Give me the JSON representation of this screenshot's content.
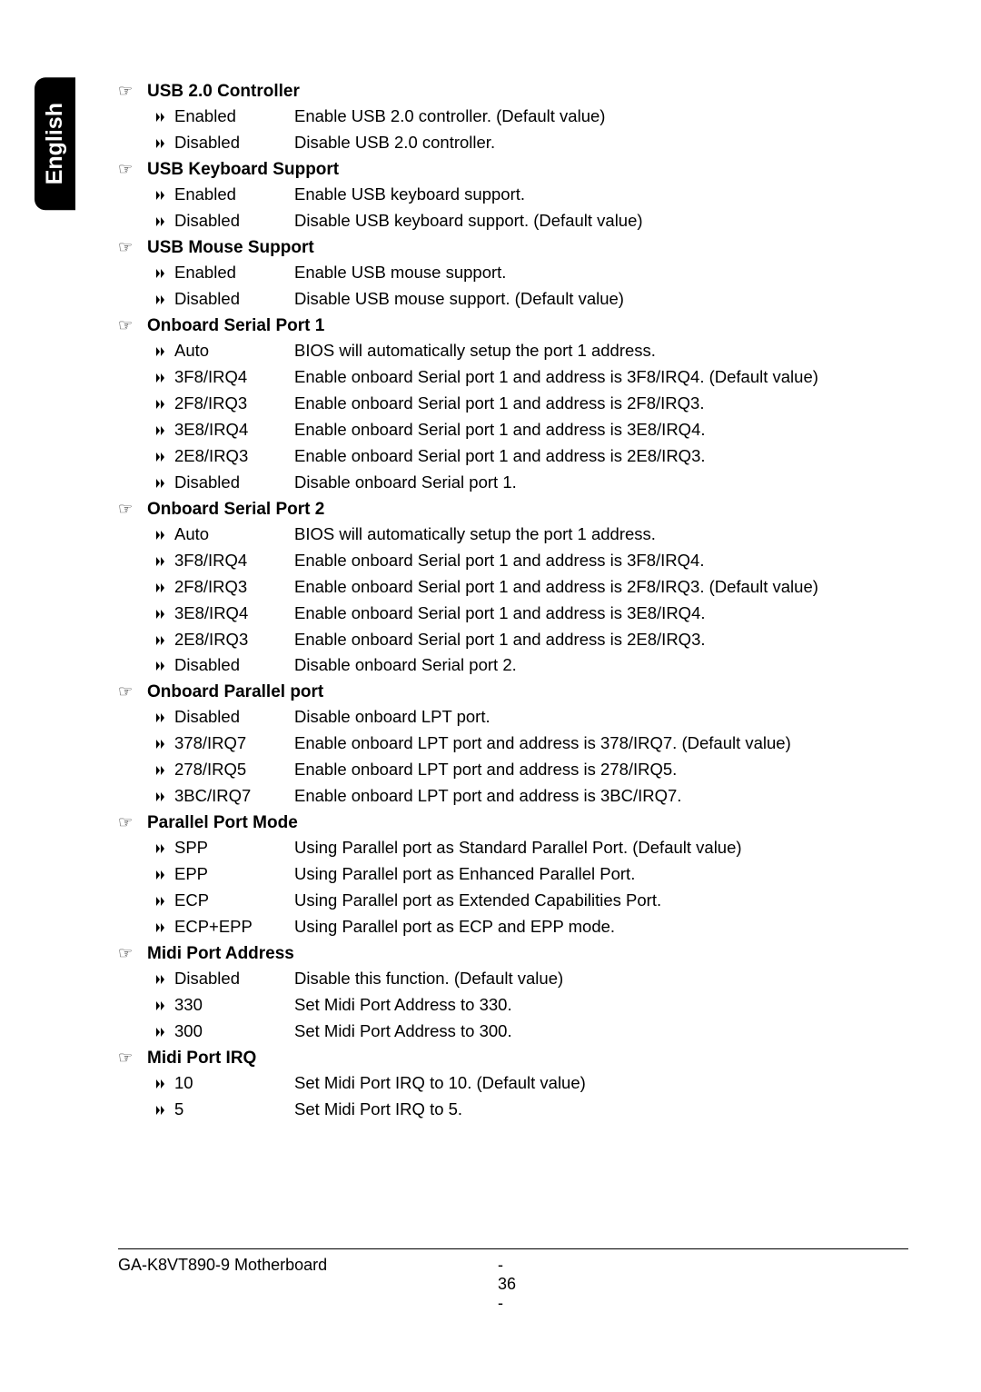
{
  "language_tab": "English",
  "sections": [
    {
      "title": "USB 2.0 Controller",
      "options": [
        {
          "label": "Enabled",
          "desc": "Enable USB 2.0 controller. (Default value)"
        },
        {
          "label": "Disabled",
          "desc": "Disable USB 2.0 controller."
        }
      ]
    },
    {
      "title": "USB Keyboard Support",
      "options": [
        {
          "label": "Enabled",
          "desc": "Enable USB keyboard support."
        },
        {
          "label": "Disabled",
          "desc": "Disable USB keyboard support. (Default value)"
        }
      ]
    },
    {
      "title": "USB Mouse Support",
      "options": [
        {
          "label": "Enabled",
          "desc": "Enable USB mouse support."
        },
        {
          "label": "Disabled",
          "desc": "Disable USB mouse support. (Default value)"
        }
      ]
    },
    {
      "title": "Onboard Serial Port 1",
      "options": [
        {
          "label": "Auto",
          "desc": "BIOS will automatically setup the port 1 address."
        },
        {
          "label": "3F8/IRQ4",
          "desc": "Enable onboard Serial port 1 and address is 3F8/IRQ4. (Default value)"
        },
        {
          "label": "2F8/IRQ3",
          "desc": "Enable onboard Serial port 1 and address is 2F8/IRQ3."
        },
        {
          "label": "3E8/IRQ4",
          "desc": "Enable onboard Serial port 1 and address is 3E8/IRQ4."
        },
        {
          "label": "2E8/IRQ3",
          "desc": "Enable onboard Serial port 1 and address is 2E8/IRQ3."
        },
        {
          "label": "Disabled",
          "desc": "Disable onboard Serial port 1."
        }
      ]
    },
    {
      "title": "Onboard Serial Port 2",
      "options": [
        {
          "label": "Auto",
          "desc": "BIOS will automatically setup the port 1 address."
        },
        {
          "label": "3F8/IRQ4",
          "desc": "Enable onboard Serial port 1 and address is 3F8/IRQ4."
        },
        {
          "label": "2F8/IRQ3",
          "desc": "Enable onboard Serial port 1 and address is 2F8/IRQ3. (Default value)"
        },
        {
          "label": "3E8/IRQ4",
          "desc": "Enable onboard Serial port 1 and address is 3E8/IRQ4."
        },
        {
          "label": "2E8/IRQ3",
          "desc": "Enable onboard Serial port 1 and address is 2E8/IRQ3."
        },
        {
          "label": "Disabled",
          "desc": "Disable onboard Serial port 2."
        }
      ]
    },
    {
      "title": "Onboard Parallel port",
      "options": [
        {
          "label": "Disabled",
          "desc": "Disable onboard LPT port."
        },
        {
          "label": "378/IRQ7",
          "desc": "Enable onboard LPT port and address is 378/IRQ7. (Default value)"
        },
        {
          "label": "278/IRQ5",
          "desc": "Enable onboard LPT port and address is 278/IRQ5."
        },
        {
          "label": "3BC/IRQ7",
          "desc": "Enable onboard LPT port and address is 3BC/IRQ7."
        }
      ]
    },
    {
      "title": "Parallel Port Mode",
      "options": [
        {
          "label": "SPP",
          "desc": "Using Parallel port as Standard Parallel Port. (Default value)"
        },
        {
          "label": "EPP",
          "desc": "Using Parallel port as Enhanced Parallel Port."
        },
        {
          "label": "ECP",
          "desc": "Using Parallel port as Extended Capabilities Port."
        },
        {
          "label": "ECP+EPP",
          "desc": "Using Parallel port as ECP and EPP mode."
        }
      ]
    },
    {
      "title": "Midi Port Address",
      "options": [
        {
          "label": "Disabled",
          "desc": "Disable this function. (Default value)"
        },
        {
          "label": "330",
          "desc": "Set Midi Port Address to 330."
        },
        {
          "label": "300",
          "desc": "Set Midi Port Address to 300."
        }
      ]
    },
    {
      "title": "Midi Port IRQ",
      "options": [
        {
          "label": "10",
          "desc": "Set Midi Port IRQ to 10. (Default value)"
        },
        {
          "label": "5",
          "desc": "Set Midi Port IRQ to 5."
        }
      ]
    }
  ],
  "footer": {
    "product": "GA-K8VT890-9 Motherboard",
    "page": "- 36 -"
  },
  "icons": {
    "hand": "☞",
    "arrow": "▸"
  }
}
